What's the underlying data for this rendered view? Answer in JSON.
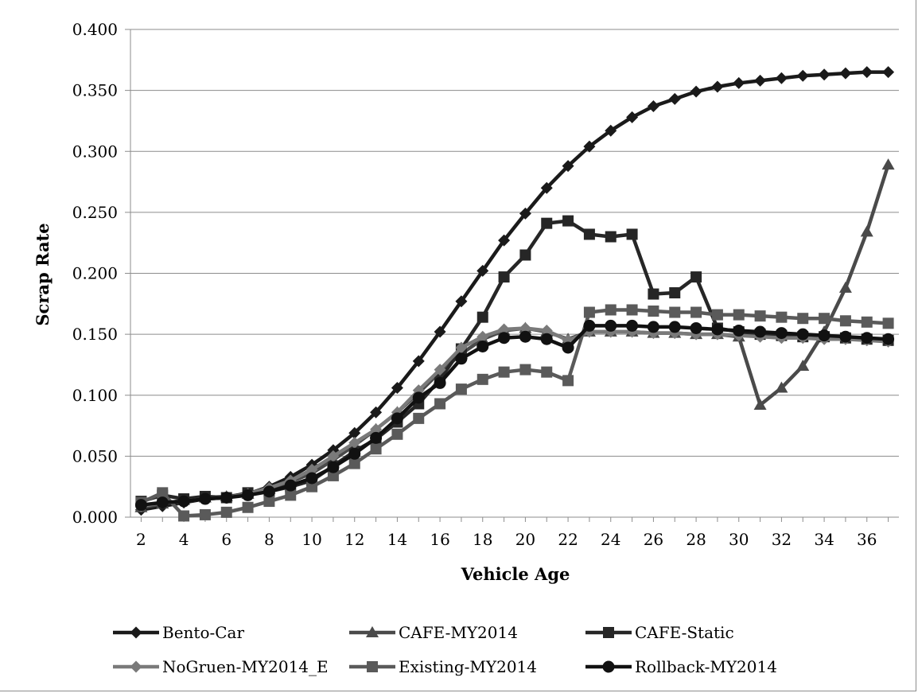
{
  "chart_data": {
    "type": "line",
    "title": "",
    "xlabel": "Vehicle Age",
    "ylabel": "Scrap Rate",
    "x": [
      2,
      3,
      4,
      5,
      6,
      7,
      8,
      9,
      10,
      11,
      12,
      13,
      14,
      15,
      16,
      17,
      18,
      19,
      20,
      21,
      22,
      23,
      24,
      25,
      26,
      27,
      28,
      29,
      30,
      31,
      32,
      33,
      34,
      35,
      36,
      37
    ],
    "x_tick_labels": [
      "2",
      "4",
      "6",
      "8",
      "10",
      "12",
      "14",
      "16",
      "18",
      "20",
      "22",
      "24",
      "26",
      "28",
      "30",
      "32",
      "34",
      "36"
    ],
    "y_tick_labels": [
      "0.000",
      "0.050",
      "0.100",
      "0.150",
      "0.200",
      "0.250",
      "0.300",
      "0.350",
      "0.400"
    ],
    "ylim": [
      0,
      0.4
    ],
    "xlim": [
      1.5,
      37.5
    ],
    "grid": "horizontal",
    "legend_position": "bottom",
    "series": [
      {
        "name": "Bento-Car",
        "color": "#1a1a1a",
        "marker": "diamond",
        "values": [
          0.006,
          0.009,
          0.012,
          0.015,
          0.016,
          0.019,
          0.025,
          0.033,
          0.043,
          0.055,
          0.069,
          0.086,
          0.106,
          0.128,
          0.152,
          0.177,
          0.202,
          0.227,
          0.249,
          0.27,
          0.288,
          0.304,
          0.317,
          0.328,
          0.337,
          0.343,
          0.349,
          0.353,
          0.356,
          0.358,
          0.36,
          0.362,
          0.363,
          0.364,
          0.365,
          0.365
        ]
      },
      {
        "name": "CAFE-MY2014",
        "color": "#4a4a4a",
        "marker": "triangle",
        "values": [
          0.008,
          0.011,
          0.014,
          0.016,
          0.017,
          0.019,
          0.023,
          0.029,
          0.036,
          0.047,
          0.059,
          0.072,
          0.086,
          0.102,
          0.119,
          0.134,
          0.146,
          0.153,
          0.155,
          0.152,
          0.146,
          0.152,
          0.152,
          0.152,
          0.151,
          0.151,
          0.15,
          0.15,
          0.148,
          0.092,
          0.106,
          0.124,
          0.152,
          0.188,
          0.234,
          0.289
        ]
      },
      {
        "name": "CAFE-Static",
        "color": "#262626",
        "marker": "square",
        "values": [
          0.013,
          0.018,
          0.015,
          0.017,
          0.016,
          0.02,
          0.021,
          0.025,
          0.03,
          0.042,
          0.054,
          0.064,
          0.078,
          0.093,
          0.113,
          0.138,
          0.164,
          0.197,
          0.215,
          0.241,
          0.243,
          0.232,
          0.23,
          0.232,
          0.183,
          0.184,
          0.197,
          0.155,
          0.152,
          0.15,
          0.149,
          0.148,
          0.148,
          0.147,
          0.146,
          0.145
        ]
      },
      {
        "name": "NoGruen-MY2014_E",
        "color": "#7a7a7a",
        "marker": "diamond",
        "values": [
          0.009,
          0.012,
          0.013,
          0.015,
          0.016,
          0.019,
          0.024,
          0.03,
          0.039,
          0.05,
          0.061,
          0.072,
          0.086,
          0.104,
          0.121,
          0.139,
          0.148,
          0.154,
          0.155,
          0.153,
          0.145,
          0.152,
          0.152,
          0.152,
          0.151,
          0.151,
          0.15,
          0.15,
          0.149,
          0.148,
          0.147,
          0.147,
          0.146,
          0.146,
          0.145,
          0.144
        ]
      },
      {
        "name": "Existing-MY2014",
        "color": "#5a5a5a",
        "marker": "square",
        "values": [
          0.012,
          0.02,
          0.001,
          0.002,
          0.004,
          0.008,
          0.013,
          0.018,
          0.025,
          0.034,
          0.044,
          0.056,
          0.068,
          0.081,
          0.093,
          0.105,
          0.113,
          0.119,
          0.121,
          0.119,
          0.112,
          0.168,
          0.17,
          0.17,
          0.169,
          0.168,
          0.168,
          0.166,
          0.166,
          0.165,
          0.164,
          0.163,
          0.163,
          0.161,
          0.16,
          0.159
        ]
      },
      {
        "name": "Rollback-MY2014",
        "color": "#111111",
        "marker": "circle",
        "values": [
          0.01,
          0.012,
          0.013,
          0.015,
          0.016,
          0.018,
          0.021,
          0.026,
          0.032,
          0.041,
          0.052,
          0.065,
          0.081,
          0.098,
          0.11,
          0.13,
          0.14,
          0.147,
          0.148,
          0.146,
          0.139,
          0.157,
          0.157,
          0.157,
          0.156,
          0.156,
          0.155,
          0.154,
          0.153,
          0.152,
          0.151,
          0.15,
          0.149,
          0.148,
          0.147,
          0.146
        ]
      }
    ]
  }
}
